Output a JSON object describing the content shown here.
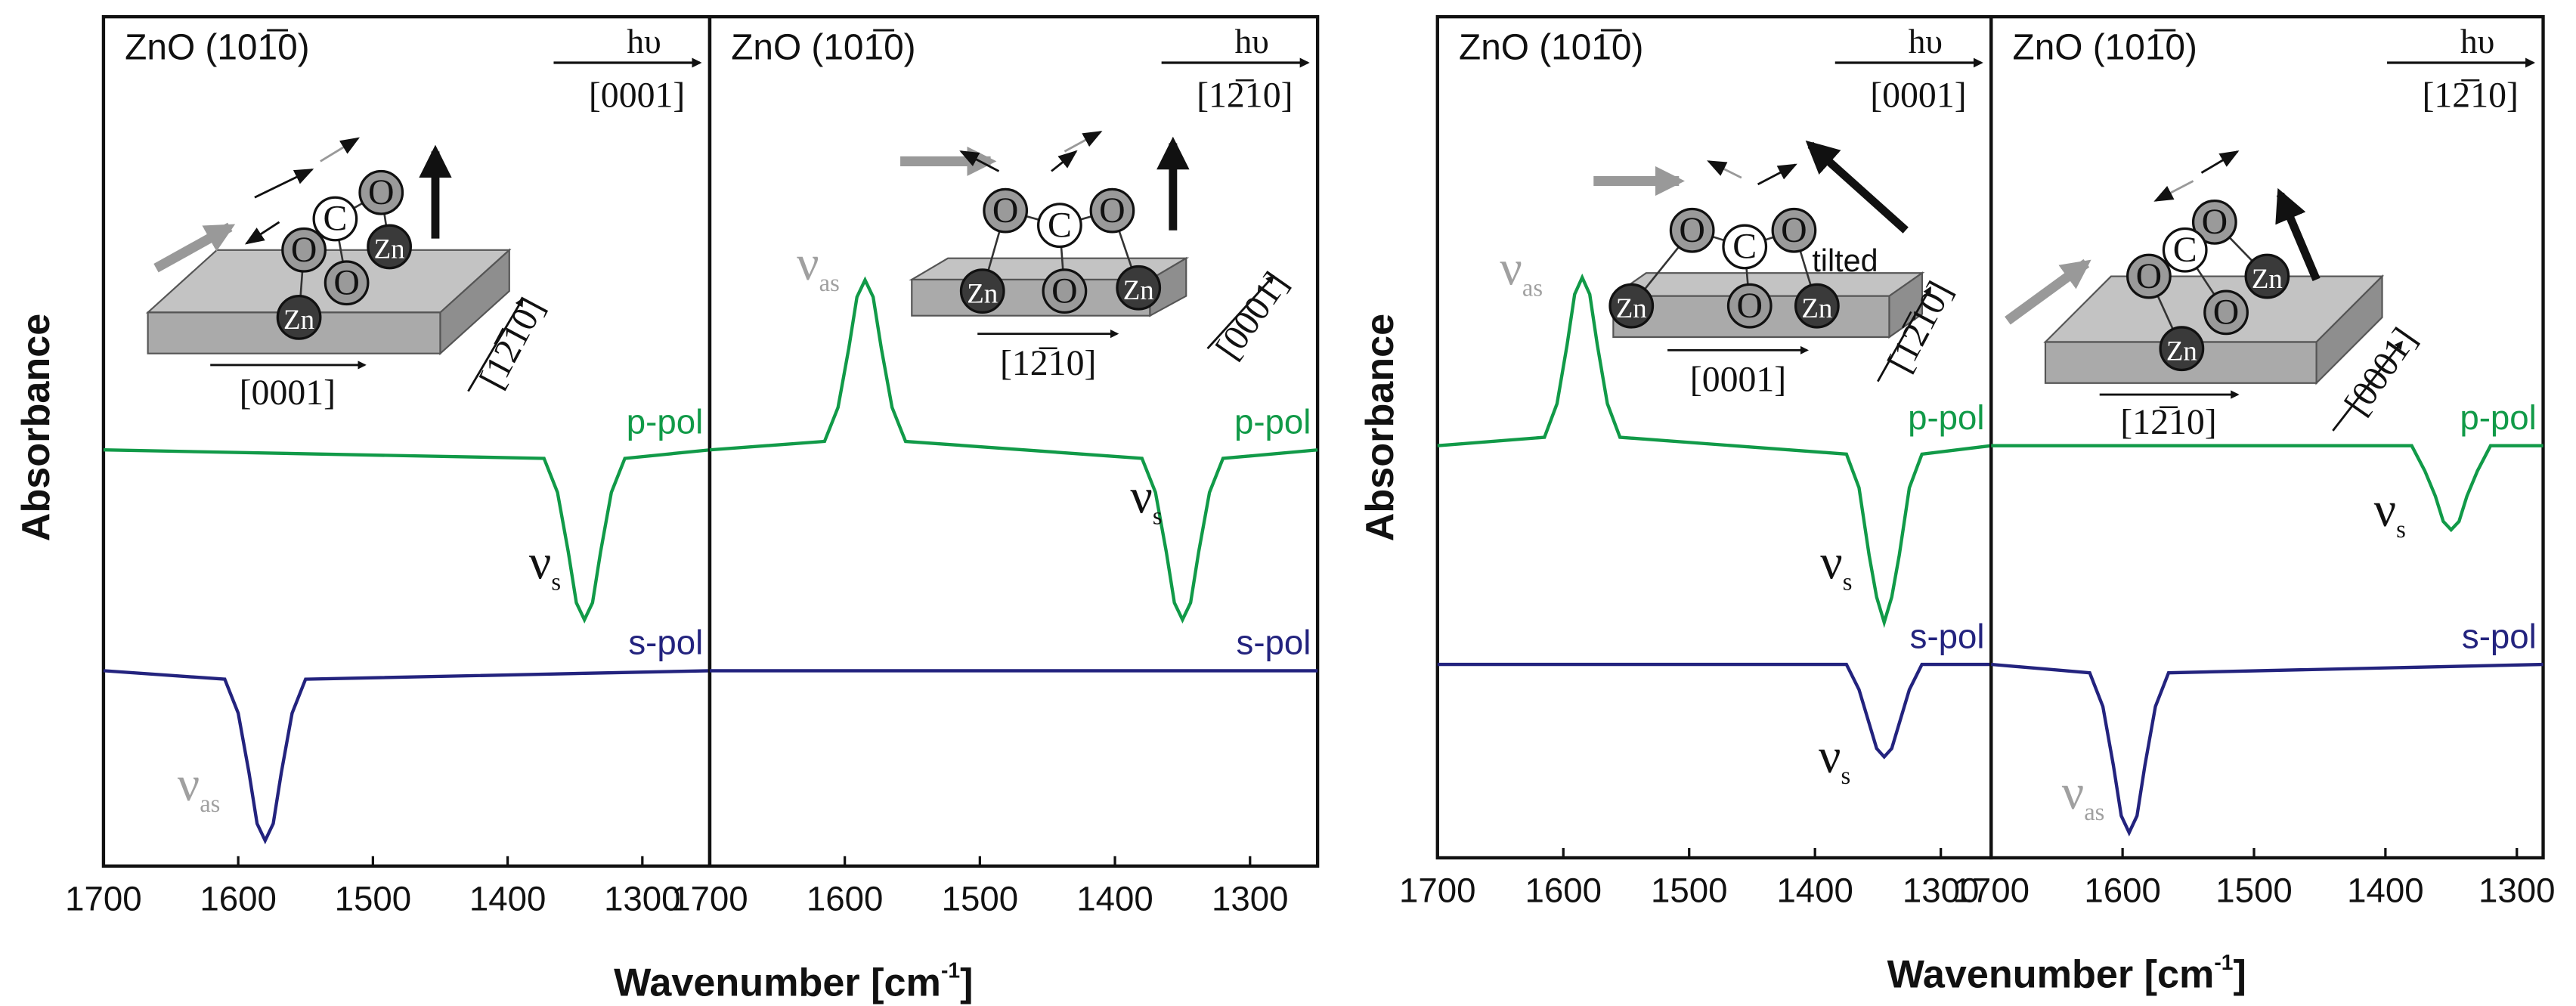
{
  "chart_data": [
    {
      "type": "line",
      "panel_label": "ZnO (101̅0)",
      "light": "hυ",
      "light_direction": "[0001]",
      "xlim": [
        1700,
        1250
      ],
      "xticks": [
        1700,
        1600,
        1500,
        1400,
        1300
      ],
      "ylim": [
        0,
        10
      ],
      "series": [
        {
          "name": "p-pol",
          "color": "#119a48",
          "x": [
            1700,
            1373,
            1363,
            1355,
            1349,
            1343,
            1337,
            1331,
            1323,
            1313,
            1250
          ],
          "values": [
            4.9,
            4.8,
            4.4,
            3.7,
            3.1,
            2.9,
            3.1,
            3.7,
            4.4,
            4.8,
            4.9
          ]
        },
        {
          "name": "s-pol",
          "color": "#23237e",
          "x": [
            1700,
            1610,
            1600,
            1592,
            1586,
            1580,
            1574,
            1568,
            1560,
            1550,
            1250
          ],
          "values": [
            2.3,
            2.2,
            1.8,
            1.1,
            0.5,
            0.3,
            0.5,
            1.1,
            1.8,
            2.2,
            2.3
          ]
        }
      ],
      "peak_labels": [
        {
          "symbol": "ν",
          "sub": "s",
          "color": "#111111"
        },
        {
          "symbol": "ν",
          "sub": "as",
          "color": "#a0a0a0"
        }
      ],
      "inset": {
        "atoms": [
          "O",
          "C",
          "O",
          "Zn",
          "O",
          "Zn"
        ],
        "axes": [
          "[0001]",
          "[12̅10]"
        ]
      }
    },
    {
      "type": "line",
      "panel_label": "ZnO (101̅0)",
      "light": "hυ",
      "light_direction": "[12̅10]",
      "xlim": [
        1700,
        1250
      ],
      "xticks": [
        1700,
        1600,
        1500,
        1400,
        1300
      ],
      "ylim": [
        0,
        10
      ],
      "series": [
        {
          "name": "p-pol",
          "color": "#119a48",
          "x": [
            1700,
            1615,
            1605,
            1597,
            1591,
            1585,
            1579,
            1573,
            1565,
            1555,
            1380,
            1370,
            1362,
            1356,
            1350,
            1344,
            1338,
            1330,
            1320,
            1250
          ],
          "values": [
            4.9,
            5.0,
            5.4,
            6.1,
            6.7,
            6.9,
            6.7,
            6.1,
            5.4,
            5.0,
            4.8,
            4.4,
            3.7,
            3.1,
            2.9,
            3.1,
            3.7,
            4.4,
            4.8,
            4.9
          ]
        },
        {
          "name": "s-pol",
          "color": "#23237e",
          "x": [
            1700,
            1250
          ],
          "values": [
            2.3,
            2.3
          ]
        }
      ],
      "peak_labels": [
        {
          "symbol": "ν",
          "sub": "as",
          "color": "#a0a0a0"
        },
        {
          "symbol": "ν",
          "sub": "s",
          "color": "#111111"
        }
      ],
      "inset": {
        "atoms": [
          "O",
          "C",
          "O",
          "Zn",
          "O",
          "Zn"
        ],
        "axes": [
          "[12̅10]",
          "[0001]"
        ]
      }
    },
    {
      "type": "line",
      "panel_label": "ZnO (101̅0)",
      "light": "hυ",
      "light_direction": "[0001]",
      "xlim": [
        1700,
        1260
      ],
      "xticks": [
        1700,
        1600,
        1500,
        1400,
        1300
      ],
      "ylim": [
        0,
        10
      ],
      "series": [
        {
          "name": "p-pol",
          "color": "#119a48",
          "x": [
            1700,
            1615,
            1605,
            1597,
            1591,
            1585,
            1579,
            1573,
            1565,
            1555,
            1375,
            1365,
            1357,
            1351,
            1345,
            1339,
            1333,
            1325,
            1315,
            1260
          ],
          "values": [
            4.9,
            5.0,
            5.4,
            6.1,
            6.7,
            6.9,
            6.7,
            6.1,
            5.4,
            5.0,
            4.8,
            4.4,
            3.6,
            3.1,
            2.8,
            3.1,
            3.6,
            4.4,
            4.8,
            4.9
          ]
        },
        {
          "name": "s-pol",
          "color": "#23237e",
          "x": [
            1700,
            1375,
            1365,
            1357,
            1351,
            1345,
            1339,
            1333,
            1325,
            1315,
            1260
          ],
          "values": [
            2.3,
            2.3,
            2.0,
            1.6,
            1.3,
            1.2,
            1.3,
            1.6,
            2.0,
            2.3,
            2.3
          ]
        }
      ],
      "peak_labels": [
        {
          "symbol": "ν",
          "sub": "as",
          "color": "#a0a0a0"
        },
        {
          "symbol": "ν",
          "sub": "s",
          "color": "#111111"
        },
        {
          "symbol": "ν",
          "sub": "s",
          "color": "#111111"
        }
      ],
      "inset": {
        "atoms": [
          "O",
          "C",
          "O",
          "Zn",
          "O",
          "Zn"
        ],
        "axes": [
          "[0001]",
          "[12̅10]"
        ],
        "note": "tilted"
      }
    },
    {
      "type": "line",
      "panel_label": "ZnO (101̅0)",
      "light": "hυ",
      "light_direction": "[12̅10]",
      "xlim": [
        1700,
        1280
      ],
      "xticks": [
        1700,
        1600,
        1500,
        1400,
        1300
      ],
      "ylim": [
        0,
        10
      ],
      "series": [
        {
          "name": "p-pol",
          "color": "#119a48",
          "x": [
            1700,
            1380,
            1370,
            1362,
            1356,
            1350,
            1344,
            1338,
            1330,
            1320,
            1280
          ],
          "values": [
            4.9,
            4.9,
            4.6,
            4.3,
            4.0,
            3.9,
            4.0,
            4.3,
            4.6,
            4.9,
            4.9
          ]
        },
        {
          "name": "s-pol",
          "color": "#23237e",
          "x": [
            1700,
            1625,
            1615,
            1607,
            1601,
            1595,
            1589,
            1583,
            1575,
            1565,
            1280
          ],
          "values": [
            2.3,
            2.2,
            1.8,
            1.1,
            0.5,
            0.3,
            0.5,
            1.1,
            1.8,
            2.2,
            2.3
          ]
        }
      ],
      "peak_labels": [
        {
          "symbol": "ν",
          "sub": "s",
          "color": "#111111"
        },
        {
          "symbol": "ν",
          "sub": "as",
          "color": "#a0a0a0"
        }
      ],
      "inset": {
        "atoms": [
          "O",
          "C",
          "O",
          "Zn",
          "O",
          "Zn"
        ],
        "axes": [
          "[12̅10]",
          "[0001]"
        ]
      }
    }
  ],
  "figures": [
    {
      "ylabel": "Absorbance",
      "xlabel": {
        "text": "Wavenumber [cm",
        "sup": "-1",
        "close": "]"
      }
    },
    {
      "ylabel": "Absorbance",
      "xlabel": {
        "text": "Wavenumber [cm",
        "sup": "-1",
        "close": "]"
      }
    }
  ]
}
